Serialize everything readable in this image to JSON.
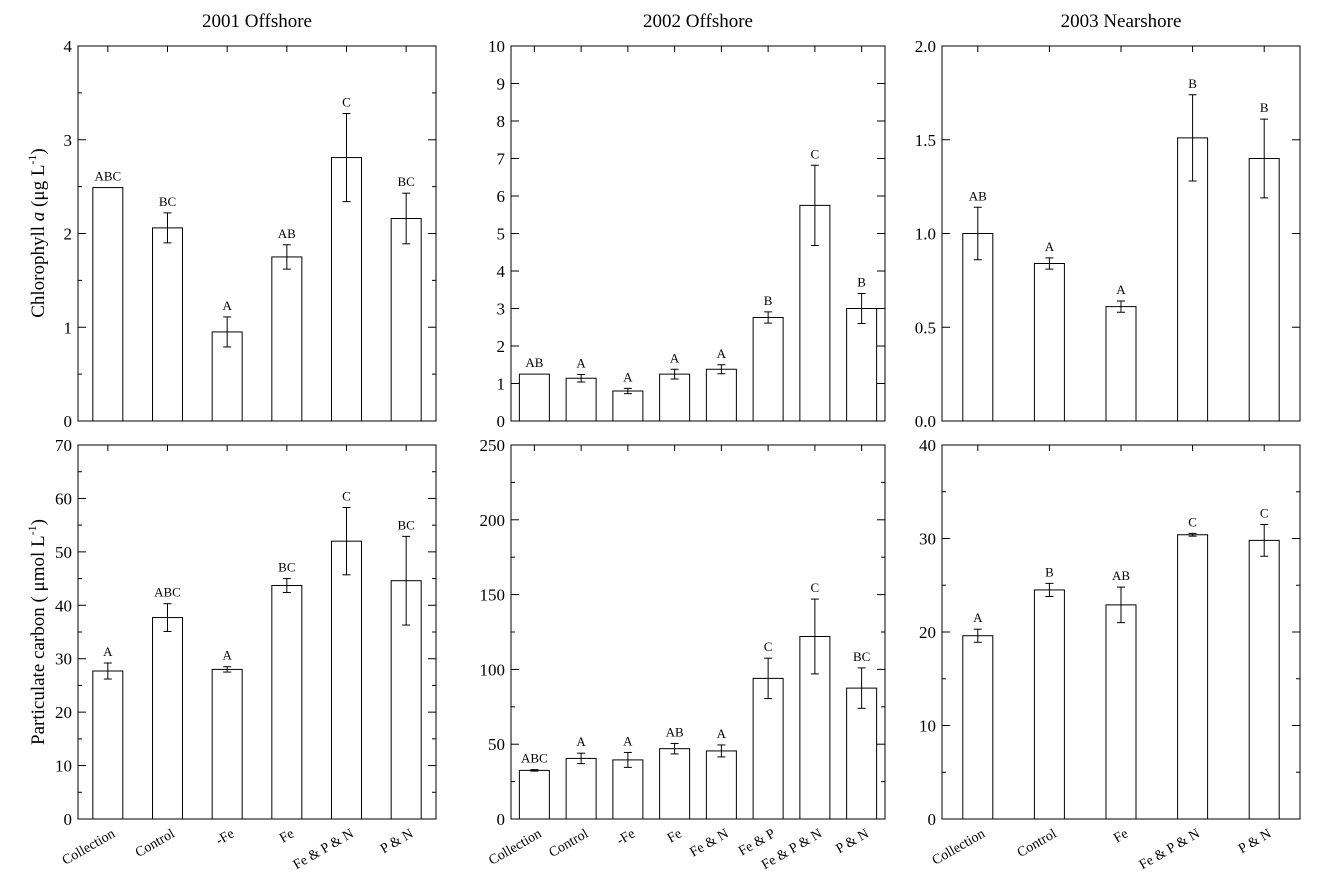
{
  "ylabels": {
    "row0": {
      "pre": "Chlorophyll ",
      "ital": "a",
      "unit_open": " (",
      "mu": "μ",
      "unit_mid": "g L",
      "sup": "-1",
      "close": ")"
    },
    "row1": {
      "pre": "Particulate carbon ( ",
      "mu": "μ",
      "unit_mid": "mol L",
      "sup": "-1",
      "close": ")"
    }
  },
  "chart_data": [
    {
      "type": "bar",
      "title": "2001 Offshore",
      "row": 0,
      "col": 0,
      "categories": [
        "Collection",
        "Control",
        "-Fe",
        "Fe",
        "Fe & P & N",
        "P & N"
      ],
      "values": [
        2.49,
        2.06,
        0.95,
        1.75,
        2.81,
        2.16
      ],
      "errors": [
        0,
        0.16,
        0.16,
        0.13,
        0.47,
        0.27
      ],
      "letters": [
        "ABC",
        "BC",
        "A",
        "AB",
        "C",
        "BC"
      ],
      "ylim": [
        0,
        4
      ],
      "yticks": [
        "0",
        "1",
        "2",
        "3",
        "4"
      ],
      "minor": 1
    },
    {
      "type": "bar",
      "title": "2002 Offshore",
      "row": 0,
      "col": 1,
      "categories": [
        "Collection",
        "Control",
        "-Fe",
        "Fe",
        "Fe & N",
        "Fe & P",
        "Fe & P & N",
        "P & N"
      ],
      "values": [
        1.25,
        1.14,
        0.8,
        1.25,
        1.38,
        2.76,
        5.75,
        3.0
      ],
      "errors": [
        0,
        0.1,
        0.07,
        0.13,
        0.12,
        0.15,
        1.07,
        0.4
      ],
      "letters": [
        "AB",
        "A",
        "A",
        "A",
        "A",
        "B",
        "C",
        "B"
      ],
      "ylim": [
        0,
        10
      ],
      "yticks": [
        "0",
        "1",
        "2",
        "3",
        "4",
        "5",
        "6",
        "7",
        "8",
        "9",
        "10"
      ],
      "minor": 0
    },
    {
      "type": "bar",
      "title": "2003 Nearshore",
      "row": 0,
      "col": 2,
      "categories": [
        "Collection",
        "Control",
        "Fe",
        "Fe & P & N",
        "P & N"
      ],
      "values": [
        1.0,
        0.84,
        0.61,
        1.51,
        1.4
      ],
      "errors": [
        0.14,
        0.03,
        0.03,
        0.23,
        0.21
      ],
      "letters": [
        "AB",
        "A",
        "A",
        "B",
        "B"
      ],
      "ylim": [
        0,
        2
      ],
      "yticks": [
        "0.0",
        "0.5",
        "1.0",
        "1.5",
        "2.0"
      ],
      "minor": 0
    },
    {
      "type": "bar",
      "title": "",
      "row": 1,
      "col": 0,
      "categories": [
        "Collection",
        "Control",
        "-Fe",
        "Fe",
        "Fe & P & N",
        "P & N"
      ],
      "values": [
        27.7,
        37.7,
        28.0,
        43.7,
        52.0,
        44.6
      ],
      "errors": [
        1.5,
        2.6,
        0.5,
        1.3,
        6.3,
        8.3
      ],
      "letters": [
        "A",
        "ABC",
        "A",
        "BC",
        "C",
        "BC"
      ],
      "ylim": [
        0,
        70
      ],
      "yticks": [
        "0",
        "10",
        "20",
        "30",
        "40",
        "50",
        "60",
        "70"
      ],
      "minor": 1
    },
    {
      "type": "bar",
      "title": "",
      "row": 1,
      "col": 1,
      "categories": [
        "Collection",
        "Control",
        "-Fe",
        "Fe",
        "Fe & N",
        "Fe & P",
        "Fe & P & N",
        "P & N"
      ],
      "values": [
        32.5,
        40.5,
        39.5,
        47.0,
        45.5,
        94.0,
        122.0,
        87.5
      ],
      "errors": [
        0.5,
        3.5,
        5.0,
        3.5,
        4.0,
        13.5,
        25.0,
        13.5
      ],
      "letters": [
        "ABC",
        "A",
        "A",
        "AB",
        "A",
        "C",
        "C",
        "BC"
      ],
      "ylim": [
        0,
        250
      ],
      "yticks": [
        "0",
        "50",
        "100",
        "150",
        "200",
        "250"
      ],
      "minor": 1
    },
    {
      "type": "bar",
      "title": "",
      "row": 1,
      "col": 2,
      "categories": [
        "Collection",
        "Control",
        "Fe",
        "Fe & P & N",
        "P & N"
      ],
      "values": [
        19.6,
        24.5,
        22.9,
        30.4,
        29.8
      ],
      "errors": [
        0.7,
        0.7,
        1.9,
        0.15,
        1.7
      ],
      "letters": [
        "A",
        "B",
        "AB",
        "C",
        "C"
      ],
      "ylim": [
        0,
        40
      ],
      "yticks": [
        "0",
        "10",
        "20",
        "30",
        "40"
      ],
      "minor": 1
    }
  ],
  "xcats": [
    [
      "Collection",
      "Control",
      "-Fe",
      "Fe",
      "Fe & P & N",
      "P & N"
    ],
    [
      "Collection",
      "Control",
      "-Fe",
      "Fe",
      "Fe & N",
      "Fe & P",
      "Fe & P & N",
      "P & N"
    ],
    [
      "Collection",
      "Control",
      "Fe",
      "Fe & P & N",
      "P & N"
    ]
  ]
}
